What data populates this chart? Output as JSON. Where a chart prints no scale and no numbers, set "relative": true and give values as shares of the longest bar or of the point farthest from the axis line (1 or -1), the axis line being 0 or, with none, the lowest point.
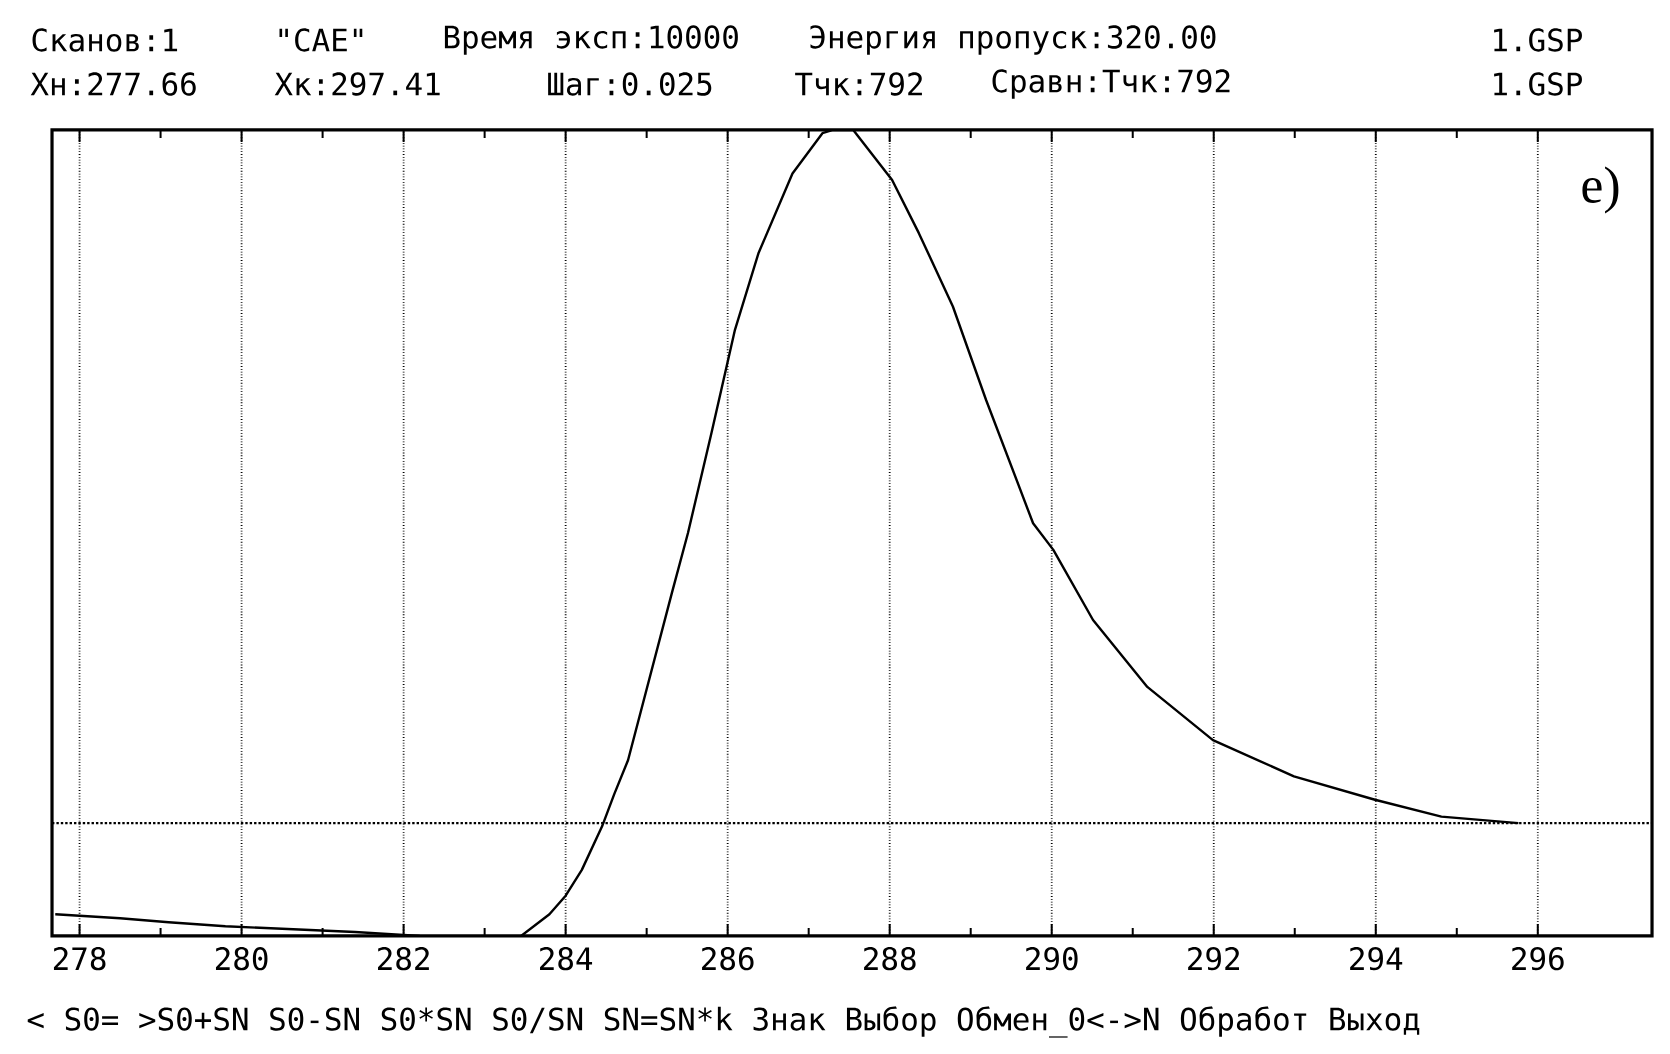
{
  "chart_data": {
    "type": "line",
    "relative": true,
    "annotations": [
      "Сканов:1",
      "\"CAE\"",
      "Время эксп:10000",
      "Энергия пропуск:320.00",
      "1.GSP",
      "Хн:277.66",
      "Хк:297.41",
      "Шаг:0.025",
      "Тчк:792",
      "Сравн:Тчк:792",
      "1.GSP",
      "< S0= >S0+SN S0-SN S0*SN S0/SN SN=SN*k Знак Выбор Обмен_0<->N Обработ Выход",
      "e)"
    ],
    "x": [
      277.7,
      278.5,
      279.1,
      279.8,
      281.4,
      282.2,
      282.8,
      283.45,
      283.8,
      284.0,
      284.2,
      284.45,
      284.6,
      284.77,
      285.31,
      285.51,
      285.8,
      286.09,
      286.38,
      286.8,
      287.17,
      287.3,
      287.55,
      288.03,
      288.36,
      288.78,
      289.19,
      289.77,
      290.02,
      290.51,
      291.18,
      291.99,
      292.99,
      293.99,
      294.81,
      295.76
    ],
    "series": [
      {
        "color": "#000000",
        "values": [
          0.027,
          0.022,
          0.017,
          0.012,
          0.005,
          0.0,
          null,
          0.0,
          0.027,
          0.05,
          0.082,
          0.136,
          0.176,
          0.218,
          0.425,
          0.5,
          0.624,
          0.752,
          0.847,
          0.946,
          0.996,
          1.0,
          1.0,
          0.938,
          0.872,
          0.781,
          0.665,
          0.512,
          0.479,
          0.392,
          0.309,
          0.243,
          0.198,
          0.169,
          0.148,
          0.14
        ]
      }
    ],
    "line_style": "solid",
    "xlim": [
      277.66,
      297.41
    ],
    "xticks": [
      278,
      280,
      282,
      284,
      286,
      288,
      290,
      292,
      294,
      296
    ],
    "grid": "x",
    "ref_lines": [
      {
        "axis": "y",
        "value": 0.14,
        "line_style": "dotted"
      }
    ]
  }
}
